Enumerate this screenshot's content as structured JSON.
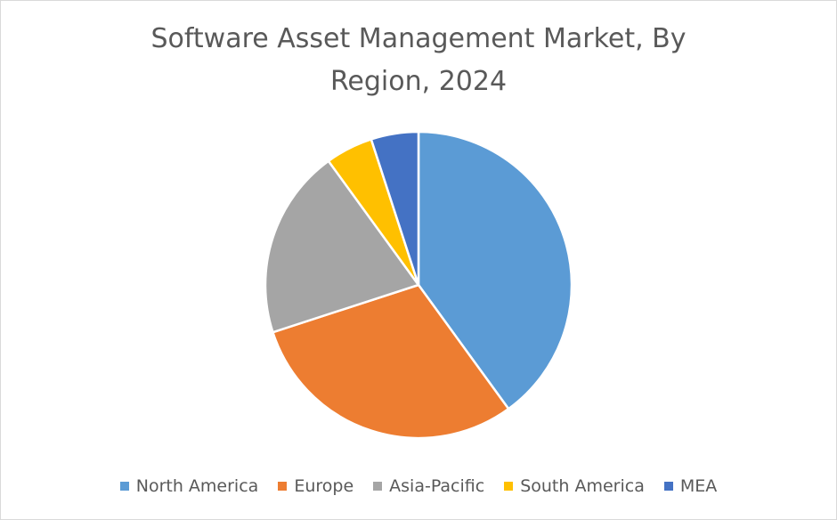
{
  "chart_data": {
    "type": "pie",
    "title": "Software Asset Management Market, By Region, 2024",
    "categories": [
      "North America",
      "Europe",
      "Asia-Pacific",
      "South America",
      "MEA"
    ],
    "values": [
      40,
      30,
      20,
      5,
      5
    ],
    "colors": [
      "#5b9bd5",
      "#ed7d31",
      "#a5a5a5",
      "#ffc000",
      "#4472c4"
    ],
    "legend": "bottom"
  }
}
